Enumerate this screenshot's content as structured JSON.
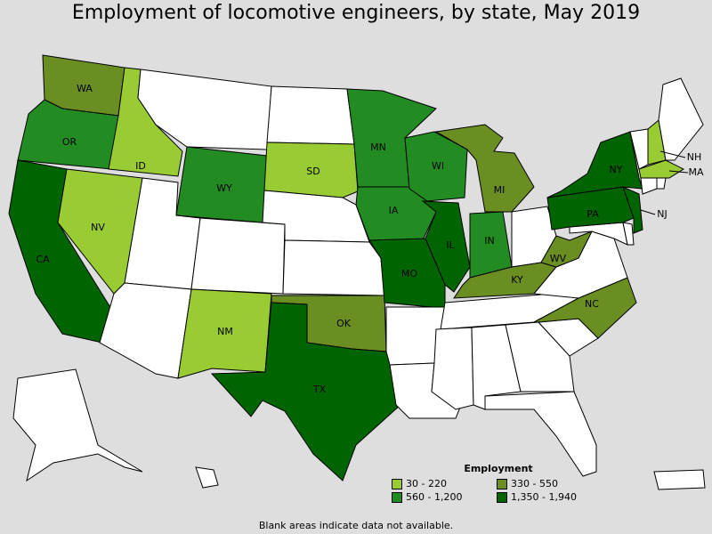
{
  "title": "Employment of locomotive engineers, by state, May 2019",
  "legend": {
    "title": "Employment",
    "bins": [
      {
        "label": "30 - 220",
        "color": "#99cc33"
      },
      {
        "label": "330 - 550",
        "color": "#6b8e23"
      },
      {
        "label": "560 - 1,200",
        "color": "#228b22"
      },
      {
        "label": "1,350 - 1,940",
        "color": "#006400"
      }
    ]
  },
  "footnote": "Blank areas indicate data not available.",
  "colors": {
    "no_data": "#ffffff",
    "background": "#dedede"
  },
  "states": [
    {
      "abbr": "WA",
      "bin": 1
    },
    {
      "abbr": "OR",
      "bin": 2
    },
    {
      "abbr": "CA",
      "bin": 3
    },
    {
      "abbr": "ID",
      "bin": 0
    },
    {
      "abbr": "NV",
      "bin": 0
    },
    {
      "abbr": "WY",
      "bin": 2
    },
    {
      "abbr": "NM",
      "bin": 0
    },
    {
      "abbr": "SD",
      "bin": 0
    },
    {
      "abbr": "MN",
      "bin": 2
    },
    {
      "abbr": "WI",
      "bin": 2
    },
    {
      "abbr": "IA",
      "bin": 2
    },
    {
      "abbr": "IL",
      "bin": 3
    },
    {
      "abbr": "MO",
      "bin": 3
    },
    {
      "abbr": "IN",
      "bin": 2
    },
    {
      "abbr": "MI",
      "bin": 1
    },
    {
      "abbr": "OK",
      "bin": 1
    },
    {
      "abbr": "TX",
      "bin": 3
    },
    {
      "abbr": "KY",
      "bin": 1
    },
    {
      "abbr": "WV",
      "bin": 1
    },
    {
      "abbr": "NC",
      "bin": 1
    },
    {
      "abbr": "PA",
      "bin": 3
    },
    {
      "abbr": "NY",
      "bin": 3
    },
    {
      "abbr": "NJ",
      "bin": 3
    },
    {
      "abbr": "NH",
      "bin": 0
    },
    {
      "abbr": "MA",
      "bin": 0
    },
    {
      "abbr": "MT",
      "bin": null
    },
    {
      "abbr": "ND",
      "bin": null
    },
    {
      "abbr": "NE",
      "bin": null
    },
    {
      "abbr": "KS",
      "bin": null
    },
    {
      "abbr": "UT",
      "bin": null
    },
    {
      "abbr": "CO",
      "bin": null
    },
    {
      "abbr": "AZ",
      "bin": null
    },
    {
      "abbr": "AR",
      "bin": null
    },
    {
      "abbr": "LA",
      "bin": null
    },
    {
      "abbr": "MS",
      "bin": null
    },
    {
      "abbr": "AL",
      "bin": null
    },
    {
      "abbr": "GA",
      "bin": null
    },
    {
      "abbr": "FL",
      "bin": null
    },
    {
      "abbr": "SC",
      "bin": null
    },
    {
      "abbr": "TN",
      "bin": null
    },
    {
      "abbr": "VA",
      "bin": null
    },
    {
      "abbr": "OH",
      "bin": null
    },
    {
      "abbr": "ME",
      "bin": null
    },
    {
      "abbr": "VT",
      "bin": null
    },
    {
      "abbr": "CT",
      "bin": null
    },
    {
      "abbr": "RI",
      "bin": null
    },
    {
      "abbr": "MD",
      "bin": null
    },
    {
      "abbr": "DE",
      "bin": null
    },
    {
      "abbr": "AK",
      "bin": null
    },
    {
      "abbr": "HI",
      "bin": null
    },
    {
      "abbr": "PR",
      "bin": null
    }
  ]
}
